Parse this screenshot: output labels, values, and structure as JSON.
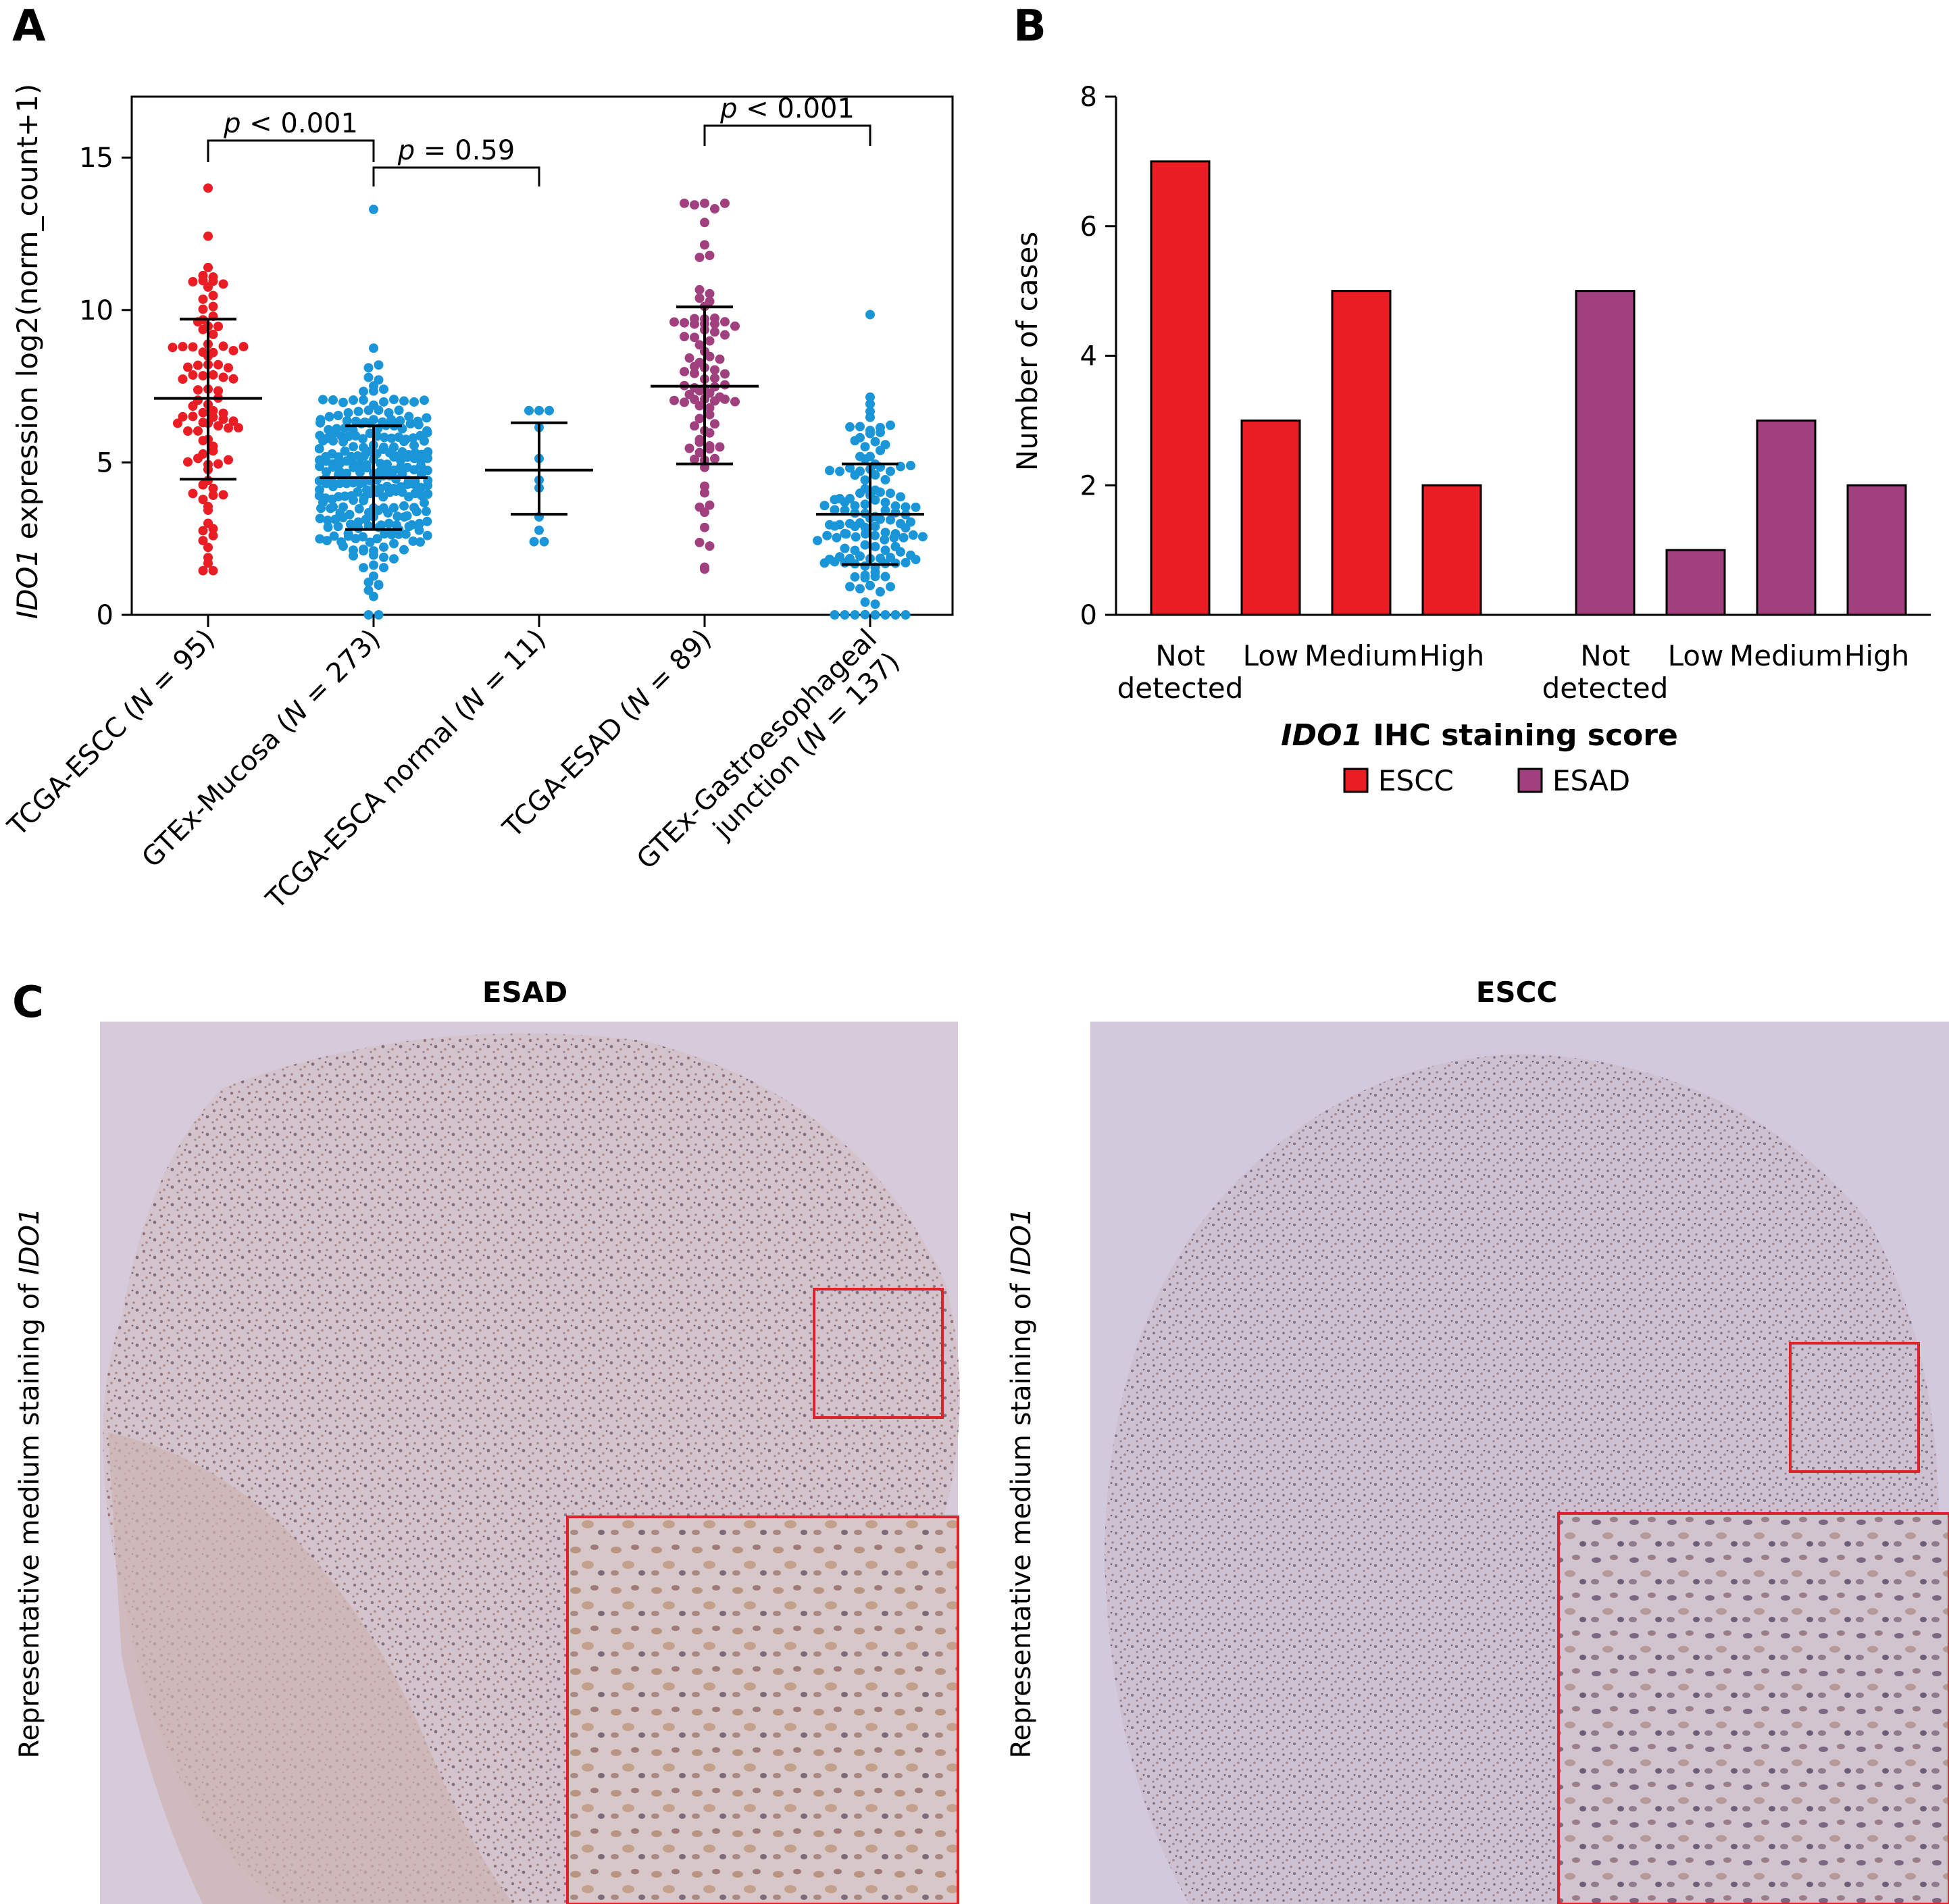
{
  "panels": {
    "a": "A",
    "b": "B",
    "c": "C"
  },
  "colors": {
    "escc": "#ea1c24",
    "esad": "#a0407e",
    "normal": "#1a96d8",
    "tissue_bg": "#d9cde0",
    "inset_border": "#e0222c"
  },
  "chart_data": [
    {
      "type": "scatter",
      "subtype": "dot-plot-with-mean-sd",
      "ylabel_gene": "IDO1",
      "ylabel_rest": " expression log2(norm_count+1)",
      "ylim": [
        0,
        17
      ],
      "yticks": [
        0,
        5,
        10,
        15
      ],
      "groups": [
        {
          "label_pre": "TCGA-ESCC (",
          "label_n": "N",
          "label_post": " = 95)",
          "label2": "",
          "n": 95,
          "mean": 7.1,
          "sd_low": 4.45,
          "sd_high": 9.7,
          "min": 1.45,
          "max": 14.0,
          "color_key": "escc"
        },
        {
          "label_pre": "GTEx-Mucosa (",
          "label_n": "N",
          "label_post": " = 273)",
          "label2": "",
          "n": 273,
          "mean": 4.5,
          "sd_low": 2.8,
          "sd_high": 6.2,
          "min": 0.0,
          "max": 13.3,
          "color_key": "normal"
        },
        {
          "label_pre": "TCGA-ESCA normal (",
          "label_n": "N",
          "label_post": " = 11)",
          "label2": "",
          "n": 11,
          "mean": 4.75,
          "sd_low": 3.3,
          "sd_high": 6.3,
          "min": 2.4,
          "max": 6.7,
          "color_key": "normal"
        },
        {
          "label_pre": "TCGA-ESAD (",
          "label_n": "N",
          "label_post": " = 89)",
          "label2": "",
          "n": 89,
          "mean": 7.5,
          "sd_low": 4.95,
          "sd_high": 10.1,
          "min": 1.5,
          "max": 13.5,
          "color_key": "esad"
        },
        {
          "label_pre": "GTEx-Gastroesophageal",
          "label_n": "",
          "label_post": "",
          "label2_pre": "junction (",
          "label2_n": "N",
          "label2_post": " = 137)",
          "n": 137,
          "mean": 3.3,
          "sd_low": 1.65,
          "sd_high": 4.95,
          "min": 0.0,
          "max": 9.85,
          "color_key": "normal"
        }
      ],
      "comparisons": [
        {
          "p_symbol": "p",
          "p_text": " < 0.001",
          "from": 0,
          "to": 1
        },
        {
          "p_symbol": "p",
          "p_text": " = 0.59",
          "from": 1,
          "to": 2
        },
        {
          "p_symbol": "p",
          "p_text": " < 0.001",
          "from": 3,
          "to": 4
        }
      ]
    },
    {
      "type": "bar",
      "ylabel": "Number of cases",
      "ylim": [
        0,
        8
      ],
      "yticks": [
        0,
        2,
        4,
        6,
        8
      ],
      "xlabel_gene": "IDO1",
      "xlabel_rest": " IHC staining score",
      "categories": [
        [
          "Not",
          "detected"
        ],
        [
          "Low"
        ],
        [
          "Medium"
        ],
        [
          "High"
        ]
      ],
      "series": [
        {
          "name": "ESCC",
          "color_key": "escc",
          "values": [
            7,
            3,
            5,
            2
          ]
        },
        {
          "name": "ESAD",
          "color_key": "esad",
          "values": [
            5,
            1,
            3,
            2
          ]
        }
      ],
      "legend_position": "bottom"
    }
  ],
  "micrographs": [
    {
      "title": "ESAD",
      "side_label_pre": "Representative medium staining of ",
      "side_label_gene": "IDO1"
    },
    {
      "title": "ESCC",
      "side_label_pre": "Representative medium staining of ",
      "side_label_gene": "IDO1"
    }
  ]
}
